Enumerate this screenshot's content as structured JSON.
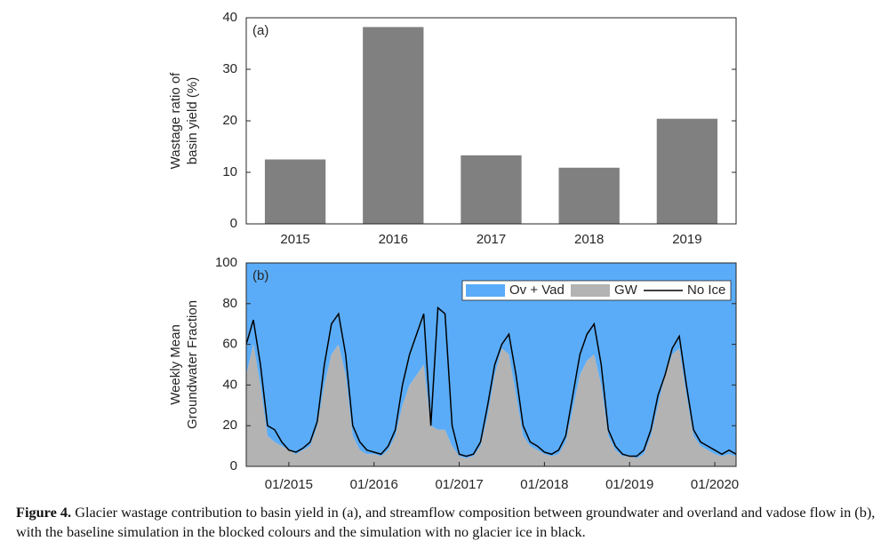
{
  "chart_data": [
    {
      "type": "bar",
      "panel_label": "(a)",
      "ylabel": [
        "Wastage ratio of",
        "basin yield (%)"
      ],
      "categories": [
        "2015",
        "2016",
        "2017",
        "2018",
        "2019"
      ],
      "values": [
        12.5,
        38.2,
        13.3,
        10.9,
        20.4
      ],
      "color": "#808080",
      "ylim": [
        0,
        40
      ],
      "yticks": [
        0,
        10,
        20,
        30,
        40
      ]
    },
    {
      "type": "area",
      "panel_label": "(b)",
      "ylabel": [
        "Weekly Mean",
        "Groundwater Fraction"
      ],
      "legend": "upper right",
      "x": [
        "2014-07",
        "2014-08",
        "2014-09",
        "2014-10",
        "2014-11",
        "2014-12",
        "2015-01",
        "2015-02",
        "2015-03",
        "2015-04",
        "2015-05",
        "2015-06",
        "2015-07",
        "2015-08",
        "2015-09",
        "2015-10",
        "2015-11",
        "2015-12",
        "2016-01",
        "2016-02",
        "2016-03",
        "2016-04",
        "2016-05",
        "2016-06",
        "2016-07",
        "2016-08",
        "2016-09",
        "2016-10",
        "2016-11",
        "2016-12",
        "2017-01",
        "2017-02",
        "2017-03",
        "2017-04",
        "2017-05",
        "2017-06",
        "2017-07",
        "2017-08",
        "2017-09",
        "2017-10",
        "2017-11",
        "2017-12",
        "2018-01",
        "2018-02",
        "2018-03",
        "2018-04",
        "2018-05",
        "2018-06",
        "2018-07",
        "2018-08",
        "2018-09",
        "2018-10",
        "2018-11",
        "2018-12",
        "2019-01",
        "2019-02",
        "2019-03",
        "2019-04",
        "2019-05",
        "2019-06",
        "2019-07",
        "2019-08",
        "2019-09",
        "2019-10",
        "2019-11",
        "2019-12",
        "2020-01",
        "2020-02",
        "2020-03",
        "2020-04"
      ],
      "series": [
        {
          "name": "GW",
          "color": "#b3b3b3",
          "values": [
            45,
            60,
            40,
            15,
            12,
            10,
            8,
            6,
            8,
            10,
            20,
            40,
            55,
            60,
            45,
            15,
            8,
            6,
            6,
            5,
            8,
            15,
            30,
            40,
            45,
            50,
            20,
            18,
            18,
            10,
            5,
            4,
            5,
            10,
            25,
            45,
            58,
            55,
            35,
            15,
            10,
            8,
            6,
            5,
            6,
            12,
            28,
            45,
            52,
            55,
            40,
            15,
            8,
            5,
            5,
            4,
            6,
            15,
            30,
            45,
            55,
            58,
            35,
            15,
            10,
            8,
            6,
            5,
            6,
            5
          ]
        },
        {
          "name": "Ov + Vad",
          "color": "#5aacf8",
          "values": [
            55,
            40,
            60,
            85,
            88,
            90,
            92,
            94,
            92,
            90,
            80,
            60,
            45,
            40,
            55,
            85,
            92,
            94,
            94,
            95,
            92,
            85,
            70,
            60,
            55,
            50,
            80,
            82,
            82,
            90,
            95,
            96,
            95,
            90,
            75,
            55,
            42,
            45,
            65,
            85,
            90,
            92,
            94,
            95,
            94,
            88,
            72,
            55,
            48,
            45,
            60,
            85,
            92,
            95,
            95,
            96,
            94,
            85,
            70,
            55,
            45,
            42,
            65,
            85,
            90,
            92,
            94,
            95,
            94,
            95
          ]
        },
        {
          "name": "No Ice",
          "type": "line",
          "color": "#000000",
          "values": [
            60,
            72,
            50,
            20,
            18,
            12,
            8,
            7,
            9,
            12,
            22,
            50,
            70,
            75,
            55,
            20,
            12,
            8,
            7,
            6,
            10,
            18,
            40,
            55,
            65,
            75,
            20,
            78,
            75,
            20,
            6,
            5,
            6,
            12,
            30,
            50,
            60,
            65,
            45,
            20,
            12,
            10,
            7,
            6,
            8,
            15,
            35,
            55,
            65,
            70,
            50,
            18,
            10,
            6,
            5,
            5,
            8,
            18,
            35,
            45,
            58,
            64,
            40,
            18,
            12,
            10,
            8,
            6,
            8,
            6
          ]
        }
      ],
      "xlim": [
        "2014-07",
        "2020-04"
      ],
      "xticks": [
        {
          "value": "2015-01",
          "label": "01/2015"
        },
        {
          "value": "2016-01",
          "label": "01/2016"
        },
        {
          "value": "2017-01",
          "label": "01/2017"
        },
        {
          "value": "2018-01",
          "label": "01/2018"
        },
        {
          "value": "2019-01",
          "label": "01/2019"
        },
        {
          "value": "2020-01",
          "label": "01/2020"
        }
      ],
      "ylim": [
        0,
        100
      ],
      "yticks": [
        0,
        20,
        40,
        60,
        80,
        100
      ]
    }
  ],
  "caption": {
    "label": "Figure 4.",
    "text": "Glacier wastage contribution to basin yield in (a), and streamflow composition between groundwater and overland and vadose flow in (b), with the baseline simulation in the blocked colours and the simulation with no glacier ice in black."
  }
}
